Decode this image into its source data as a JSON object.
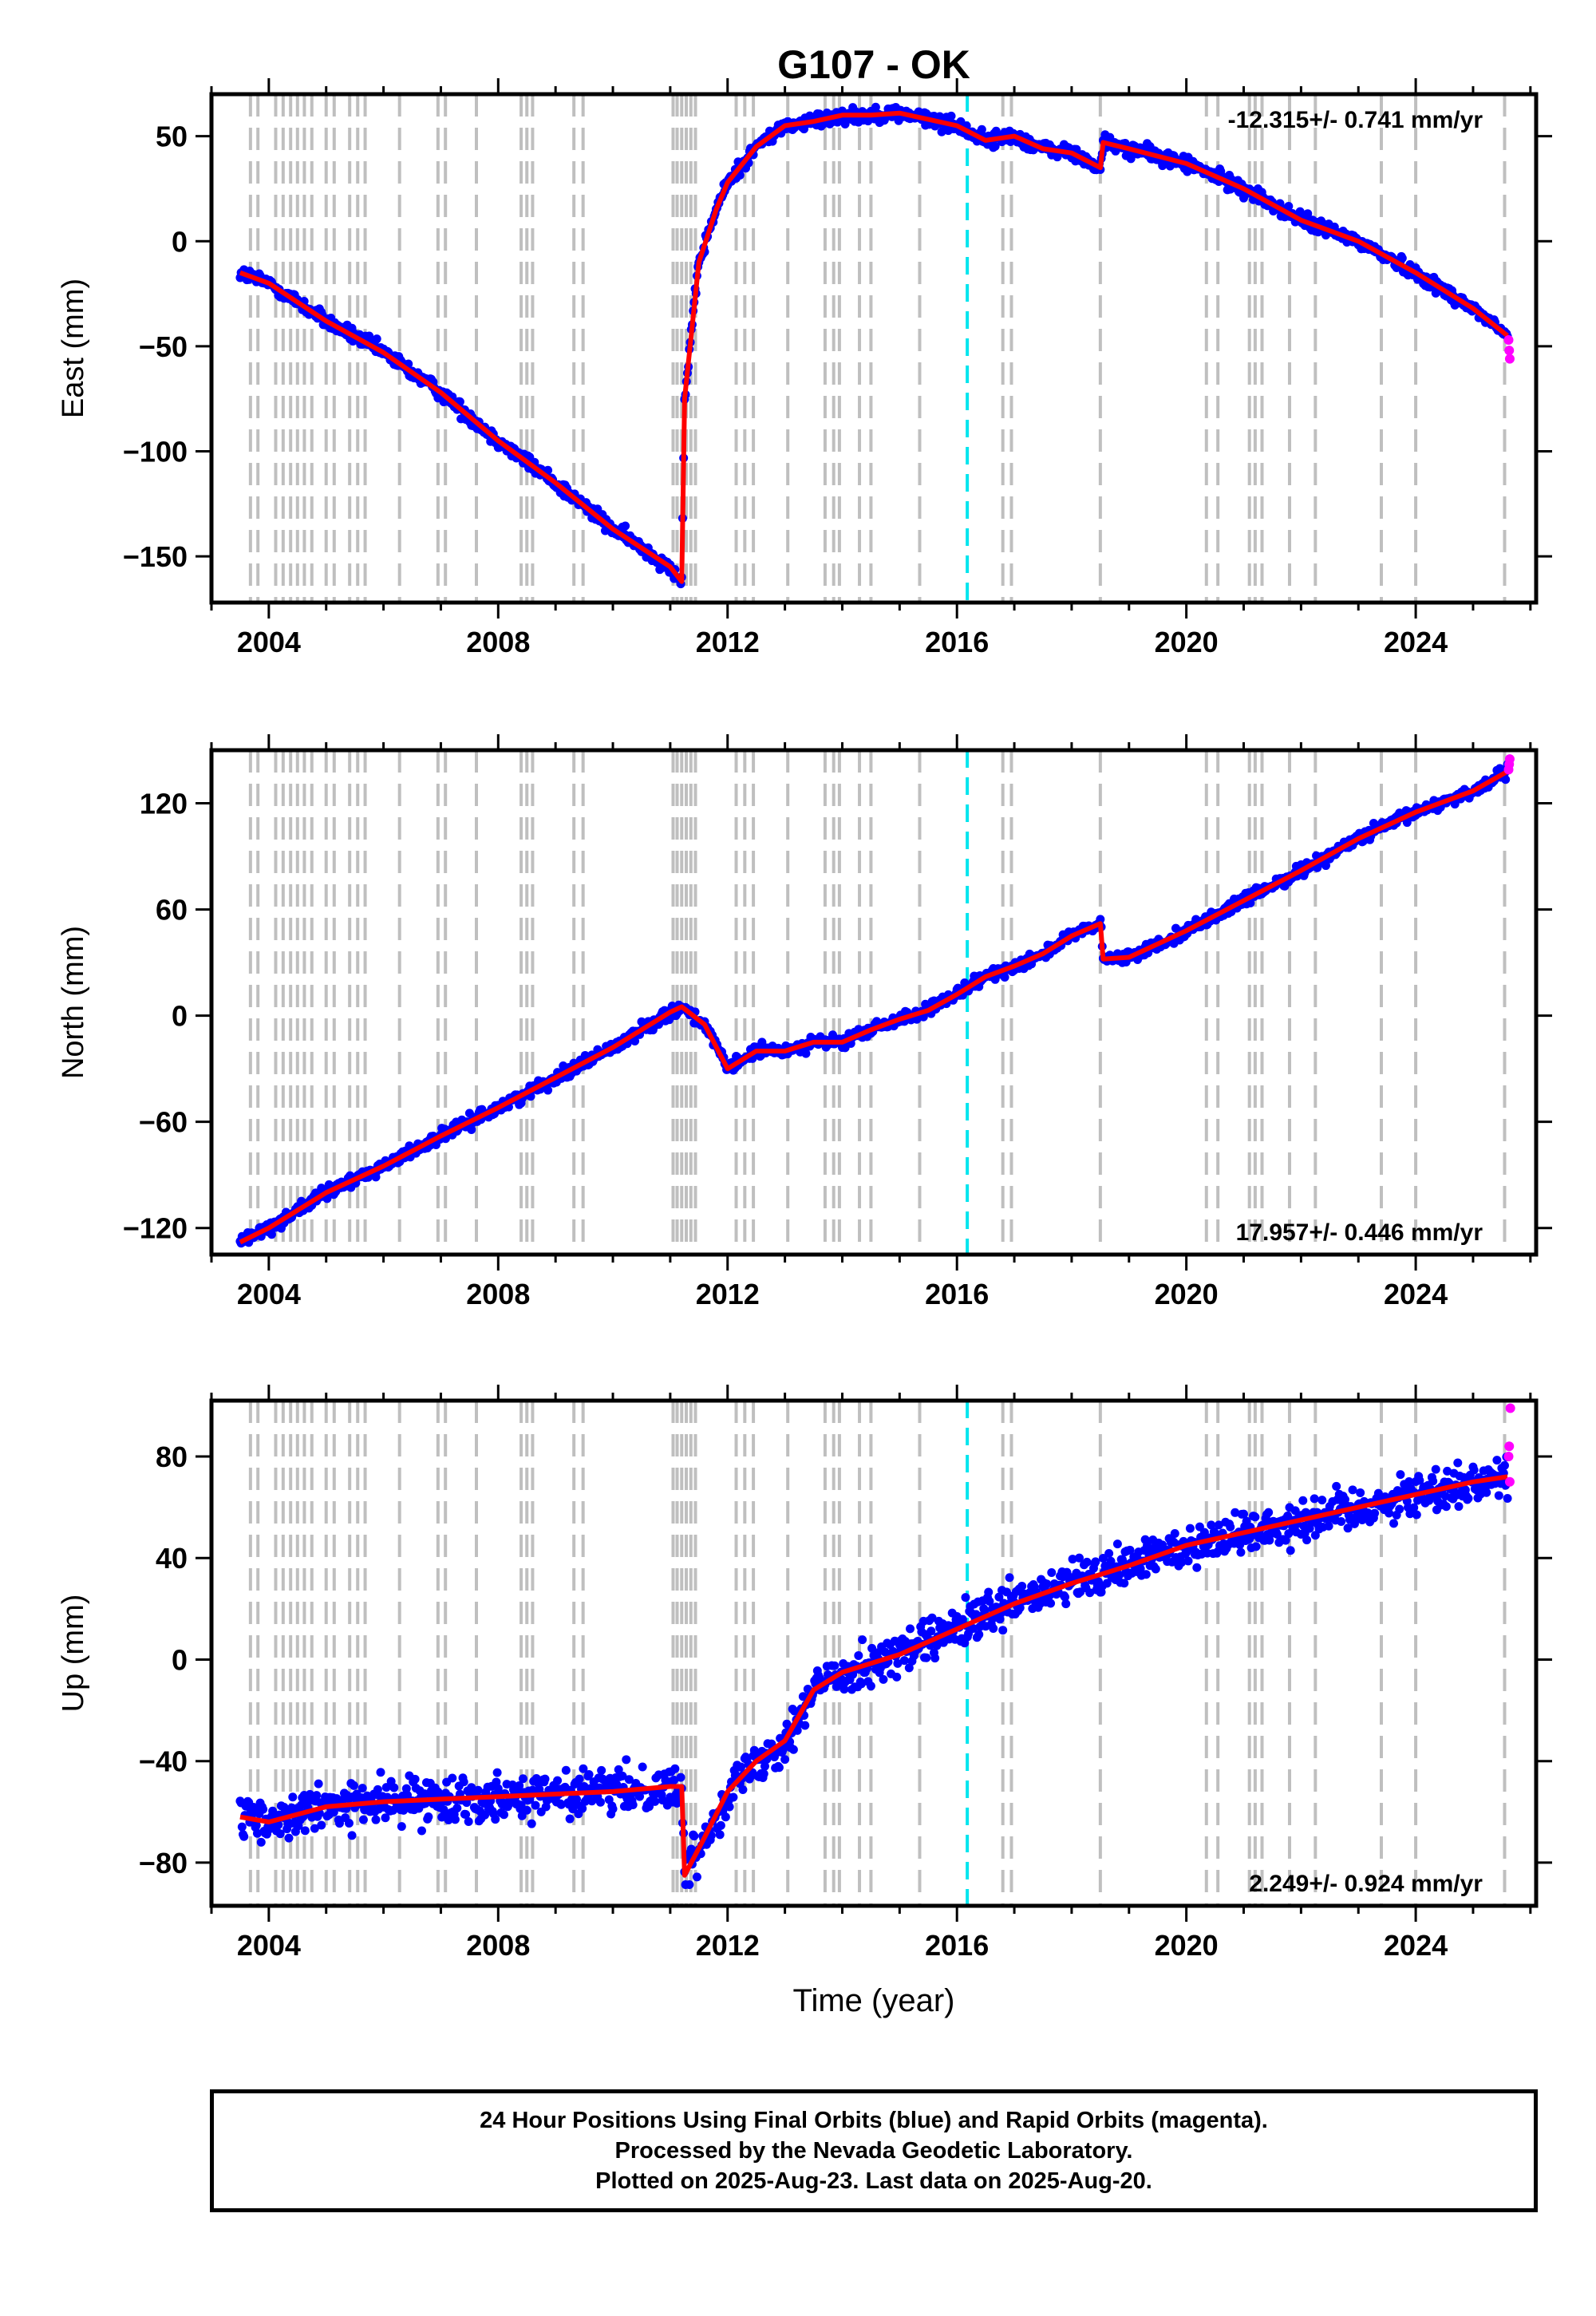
{
  "chart_data": {
    "type": "scatter",
    "title": "G107 - OK",
    "xlabel": "Time (year)",
    "xlim": [
      2003.0,
      2026.1
    ],
    "xticks": [
      2004,
      2008,
      2012,
      2016,
      2020,
      2024
    ],
    "x_tick_labels": [
      "2004",
      "2008",
      "2012",
      "2016",
      "2020",
      "2024"
    ],
    "grid": "off",
    "colors": {
      "final_orbits": "#0000ff",
      "rapid_orbits": "#ff00ff",
      "model_fit": "#ff0000",
      "equipment_change": "#bfbfbf",
      "earthquake": "#00e5ee"
    },
    "equipment_change_years": [
      2003.68,
      2003.81,
      2004.12,
      2004.25,
      2004.38,
      2004.5,
      2004.62,
      2004.75,
      2005.0,
      2005.14,
      2005.41,
      2005.55,
      2005.68,
      2006.28,
      2006.95,
      2007.08,
      2007.62,
      2008.4,
      2008.5,
      2008.6,
      2009.32,
      2009.48,
      2011.05,
      2011.12,
      2011.2,
      2011.28,
      2011.36,
      2011.44,
      2012.15,
      2012.3,
      2012.45,
      2013.05,
      2013.7,
      2013.85,
      2013.95,
      2014.3,
      2014.5,
      2015.35,
      2016.8,
      2016.95,
      2018.5,
      2020.35,
      2020.55,
      2021.1,
      2021.2,
      2021.32,
      2021.8,
      2022.25,
      2023.4,
      2024.0,
      2025.55
    ],
    "earthquake_years": [
      2016.18
    ],
    "series": [
      {
        "component": "east",
        "ylabel": "East (mm)",
        "ylim": [
          -172,
          70
        ],
        "yticks": [
          -150,
          -100,
          -50,
          0,
          50
        ],
        "y_tick_labels": [
          "−150",
          "−100",
          "−50",
          "0",
          "50"
        ],
        "rate_label": "-12.315+/- 0.741 mm/yr",
        "rate_position": "top-right",
        "x": [
          2003.5,
          2004.0,
          2005.0,
          2006.0,
          2007.0,
          2008.0,
          2009.0,
          2010.0,
          2011.0,
          2011.2,
          2011.25,
          2011.5,
          2011.8,
          2012.0,
          2012.5,
          2013.0,
          2013.5,
          2014.0,
          2014.5,
          2015.0,
          2015.5,
          2016.0,
          2016.5,
          2017.0,
          2017.5,
          2018.0,
          2018.5,
          2018.55,
          2019.0,
          2020.0,
          2021.0,
          2022.0,
          2023.0,
          2024.0,
          2025.0,
          2025.6
        ],
        "y": [
          -15,
          -20,
          -38,
          -53,
          -72,
          -95,
          -115,
          -137,
          -155,
          -162,
          -75,
          -10,
          15,
          28,
          45,
          55,
          57,
          60,
          60,
          61,
          58,
          55,
          48,
          50,
          44,
          42,
          35,
          47,
          44,
          37,
          25,
          10,
          0,
          -15,
          -32,
          -45
        ],
        "scatter": 2.5,
        "rapid_x": [
          2025.62,
          2025.63,
          2025.64
        ],
        "rapid_y": [
          -47,
          -52,
          -56
        ]
      },
      {
        "component": "north",
        "ylabel": "North (mm)",
        "ylim": [
          -135,
          150
        ],
        "yticks": [
          -120,
          -60,
          0,
          60,
          120
        ],
        "y_tick_labels": [
          "−120",
          "−60",
          "0",
          "60",
          "120"
        ],
        "rate_label": "17.957+/- 0.446 mm/yr",
        "rate_position": "bottom-right",
        "x": [
          2003.5,
          2004.0,
          2005.0,
          2006.0,
          2007.0,
          2008.0,
          2009.0,
          2010.0,
          2011.0,
          2011.2,
          2011.6,
          2012.0,
          2012.5,
          2013.0,
          2013.5,
          2014.0,
          2014.5,
          2015.0,
          2015.5,
          2016.0,
          2016.5,
          2017.0,
          2017.5,
          2018.0,
          2018.5,
          2018.55,
          2019.0,
          2020.0,
          2021.0,
          2022.0,
          2023.0,
          2024.0,
          2025.0,
          2025.6
        ],
        "y": [
          -128,
          -120,
          -100,
          -85,
          -68,
          -52,
          -35,
          -18,
          2,
          5,
          -5,
          -30,
          -20,
          -20,
          -15,
          -15,
          -8,
          -2,
          3,
          12,
          22,
          28,
          35,
          45,
          52,
          32,
          33,
          48,
          65,
          82,
          100,
          115,
          127,
          138
        ],
        "scatter": 2.5,
        "rapid_x": [
          2025.62,
          2025.63,
          2025.64
        ],
        "rapid_y": [
          139,
          142,
          145
        ]
      },
      {
        "component": "up",
        "ylabel": "Up (mm)",
        "ylim": [
          -97,
          102
        ],
        "yticks": [
          -80,
          -40,
          0,
          40,
          80
        ],
        "y_tick_labels": [
          "−80",
          "−40",
          "0",
          "40",
          "80"
        ],
        "rate_label": "2.249+/- 0.924 mm/yr",
        "rate_position": "bottom-right",
        "x": [
          2003.5,
          2004.0,
          2005.0,
          2006.0,
          2007.0,
          2008.0,
          2009.0,
          2010.0,
          2011.0,
          2011.2,
          2011.25,
          2011.6,
          2012.0,
          2012.5,
          2013.0,
          2013.5,
          2014.0,
          2015.0,
          2016.0,
          2017.0,
          2018.0,
          2019.0,
          2020.0,
          2021.0,
          2022.0,
          2023.0,
          2024.0,
          2025.0,
          2025.6
        ],
        "y": [
          -62,
          -64,
          -58,
          -56,
          -55,
          -54,
          -53,
          -52,
          -50,
          -50,
          -85,
          -70,
          -52,
          -40,
          -32,
          -12,
          -5,
          2,
          12,
          22,
          30,
          37,
          45,
          50,
          55,
          60,
          65,
          70,
          72
        ],
        "scatter": 6,
        "rapid_x": [
          2025.62,
          2025.63,
          2025.64,
          2025.65
        ],
        "rapid_y": [
          80,
          84,
          70,
          99
        ]
      }
    ]
  },
  "footer": {
    "line1": "24 Hour Positions Using Final Orbits (blue) and Rapid Orbits (magenta).",
    "line2": "Processed by the Nevada Geodetic Laboratory.",
    "line3": "Plotted on 2025-Aug-23. Last data on 2025-Aug-20."
  }
}
